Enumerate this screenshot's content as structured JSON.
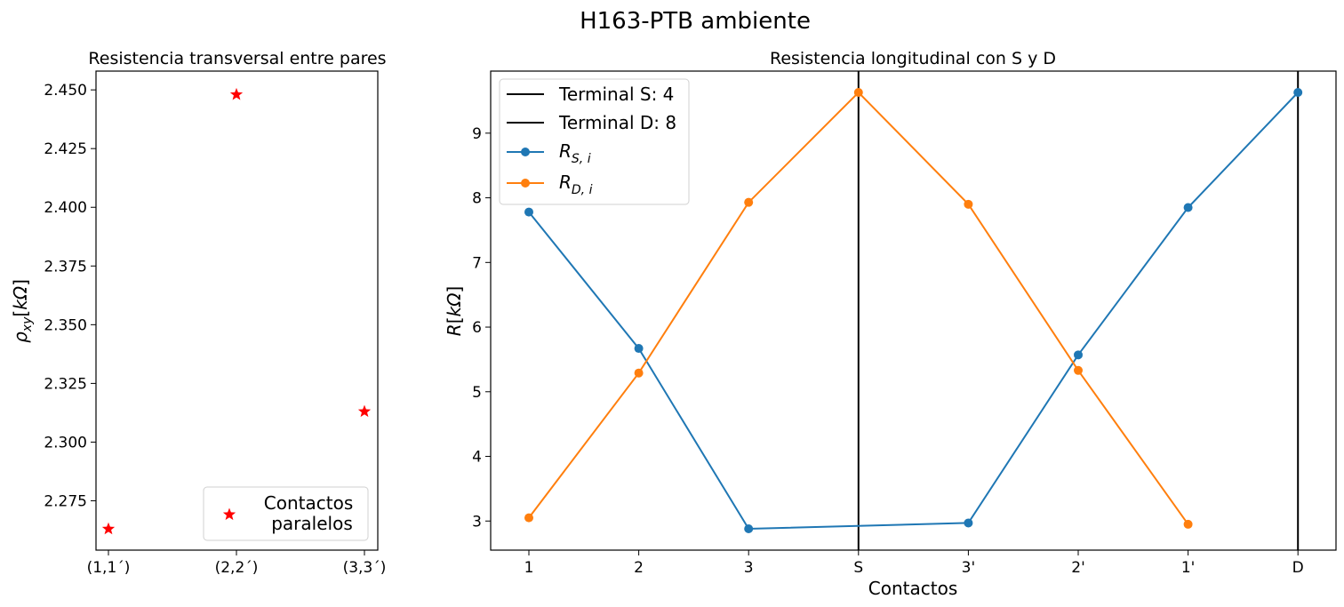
{
  "suptitle": "H163-PTB ambiente",
  "chart_data": [
    {
      "type": "scatter",
      "title": "Resistencia transversal entre pares",
      "xlabel": "",
      "ylabel": "ρ_xy [kΩ]",
      "categories": [
        "(1,1´)",
        "(2,2´)",
        "(3,3´)"
      ],
      "series": [
        {
          "name": "Contactos paralelos",
          "values": [
            2.263,
            2.448,
            2.313
          ],
          "color": "#ff0000",
          "marker": "star"
        }
      ],
      "ylim": [
        2.254,
        2.458
      ],
      "yticks": [
        2.275,
        2.3,
        2.325,
        2.35,
        2.375,
        2.4,
        2.425,
        2.45
      ],
      "ytick_labels": [
        "2.275",
        "2.300",
        "2.325",
        "2.350",
        "2.375",
        "2.400",
        "2.425",
        "2.450"
      ],
      "legend": {
        "placement": "lower-right",
        "entries": [
          {
            "line1": "Contactos",
            "line2": "paralelos"
          }
        ]
      },
      "grid": false
    },
    {
      "type": "line",
      "title": "Resistencia longitudinal con S y D",
      "xlabel": "Contactos",
      "ylabel": "R[kΩ]",
      "categories": [
        "1",
        "2",
        "3",
        "S",
        "3'",
        "2'",
        "1'",
        "D"
      ],
      "series": [
        {
          "name": "R_{S,i}",
          "color": "#1f77b4",
          "points": [
            [
              0,
              7.78
            ],
            [
              1,
              5.67
            ],
            [
              2,
              2.88
            ],
            [
              4,
              2.97
            ],
            [
              5,
              5.57
            ],
            [
              6,
              7.85
            ],
            [
              7,
              9.63
            ]
          ]
        },
        {
          "name": "R_{D,i}",
          "color": "#ff7f0e",
          "points": [
            [
              0,
              3.05
            ],
            [
              1,
              5.29
            ],
            [
              2,
              7.93
            ],
            [
              3,
              9.63
            ],
            [
              4,
              7.9
            ],
            [
              5,
              5.33
            ],
            [
              6,
              2.95
            ]
          ]
        }
      ],
      "vlines": [
        {
          "label": "Terminal S: 4",
          "category": "S",
          "color": "#000000"
        },
        {
          "label": "Terminal D: 8",
          "category": "D",
          "color": "#000000"
        }
      ],
      "ylim": [
        2.55,
        9.96
      ],
      "yticks": [
        3,
        4,
        5,
        6,
        7,
        8,
        9
      ],
      "ytick_labels": [
        "3",
        "4",
        "5",
        "6",
        "7",
        "8",
        "9"
      ],
      "legend": {
        "placement": "upper-left"
      },
      "grid": false
    }
  ]
}
